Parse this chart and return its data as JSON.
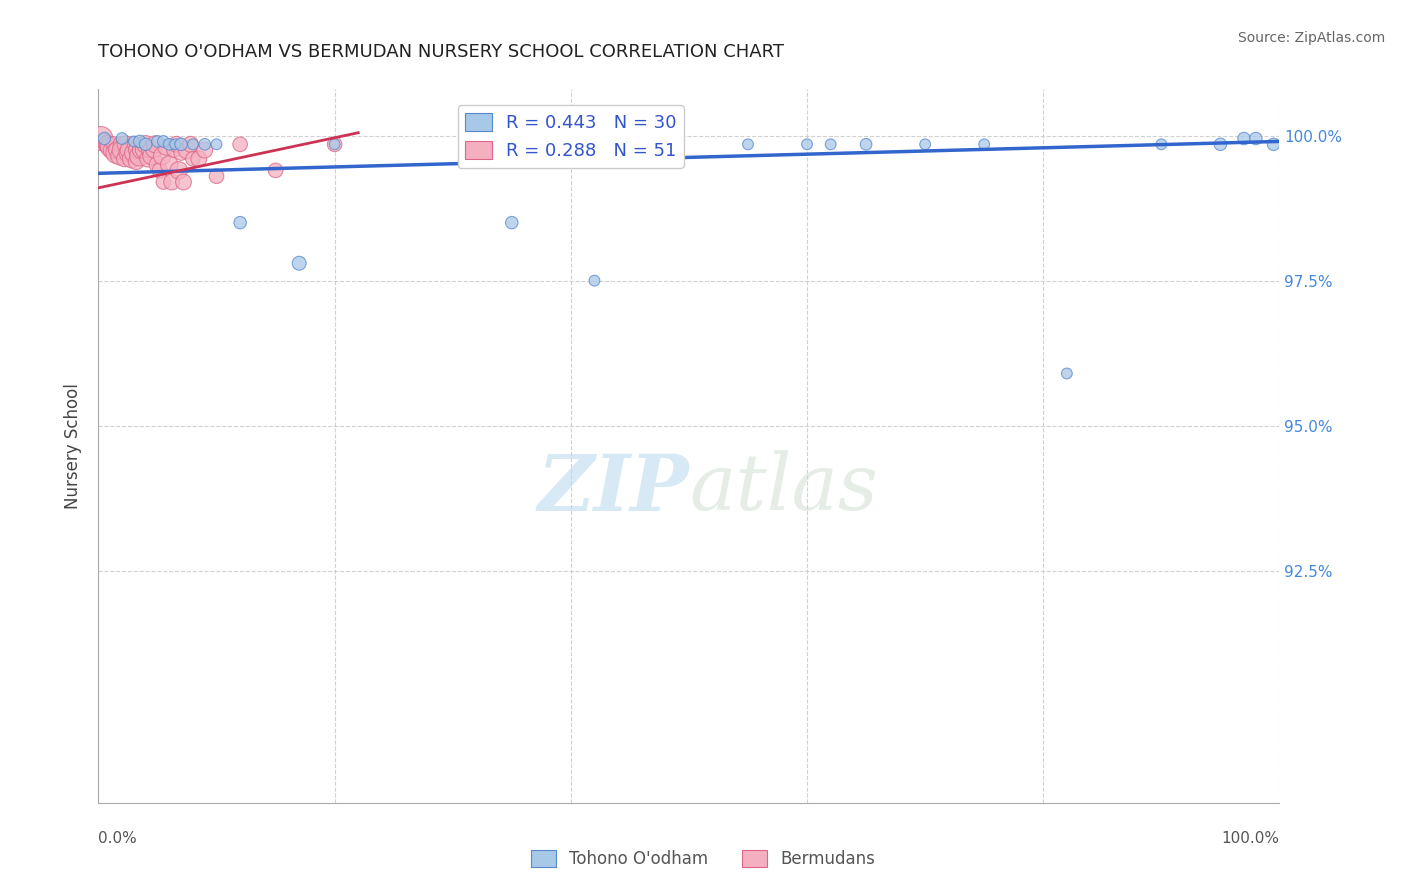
{
  "title": "TOHONO O'ODHAM VS BERMUDAN NURSERY SCHOOL CORRELATION CHART",
  "source_text": "Source: ZipAtlas.com",
  "xlabel_bottom_left": "0.0%",
  "xlabel_bottom_right": "100.0%",
  "ylabel": "Nursery School",
  "ytick_labels": [
    "100.0%",
    "97.5%",
    "95.0%",
    "92.5%"
  ],
  "ytick_values": [
    1.0,
    0.975,
    0.95,
    0.925
  ],
  "xlim": [
    0.0,
    1.0
  ],
  "ylim": [
    0.885,
    1.008
  ],
  "blue_R": 0.443,
  "blue_N": 30,
  "pink_R": 0.288,
  "pink_N": 51,
  "blue_label": "Tohono O'odham",
  "pink_label": "Bermudans",
  "blue_color": "#a8c8e8",
  "pink_color": "#f4b0c0",
  "blue_edge_color": "#5588cc",
  "pink_edge_color": "#dd6688",
  "blue_line_color": "#3366cc",
  "pink_line_color": "#cc3355",
  "watermark_zip": "ZIP",
  "watermark_atlas": "atlas",
  "blue_scatter_x": [
    0.005,
    0.02,
    0.03,
    0.035,
    0.04,
    0.05,
    0.055,
    0.06,
    0.065,
    0.07,
    0.08,
    0.09,
    0.1,
    0.12,
    0.17,
    0.2,
    0.35,
    0.42,
    0.55,
    0.6,
    0.62,
    0.65,
    0.7,
    0.75,
    0.82,
    0.9,
    0.95,
    0.97,
    0.98,
    0.995
  ],
  "blue_scatter_y": [
    0.9995,
    0.9995,
    0.999,
    0.999,
    0.9985,
    0.999,
    0.999,
    0.9985,
    0.9985,
    0.9985,
    0.9985,
    0.9985,
    0.9985,
    0.985,
    0.978,
    0.9985,
    0.985,
    0.975,
    0.9985,
    0.9985,
    0.9985,
    0.9985,
    0.9985,
    0.9985,
    0.959,
    0.9985,
    0.9985,
    0.9995,
    0.9995,
    0.9985
  ],
  "blue_scatter_size": [
    80,
    70,
    60,
    80,
    80,
    70,
    70,
    70,
    60,
    80,
    60,
    70,
    60,
    80,
    100,
    60,
    80,
    60,
    60,
    60,
    60,
    70,
    60,
    60,
    60,
    60,
    80,
    80,
    80,
    80
  ],
  "pink_scatter_x": [
    0.002,
    0.005,
    0.007,
    0.008,
    0.01,
    0.012,
    0.013,
    0.015,
    0.016,
    0.018,
    0.019,
    0.02,
    0.022,
    0.023,
    0.025,
    0.026,
    0.028,
    0.03,
    0.031,
    0.032,
    0.033,
    0.035,
    0.036,
    0.038,
    0.04,
    0.042,
    0.043,
    0.045,
    0.047,
    0.048,
    0.05,
    0.052,
    0.054,
    0.055,
    0.057,
    0.06,
    0.062,
    0.064,
    0.066,
    0.068,
    0.07,
    0.072,
    0.075,
    0.078,
    0.08,
    0.085,
    0.09,
    0.1,
    0.12,
    0.15,
    0.2
  ],
  "pink_scatter_y": [
    0.9995,
    0.999,
    0.9985,
    0.9985,
    0.998,
    0.9975,
    0.9985,
    0.997,
    0.9975,
    0.9965,
    0.9985,
    0.9975,
    0.996,
    0.9985,
    0.997,
    0.9975,
    0.996,
    0.997,
    0.9985,
    0.9955,
    0.9975,
    0.9965,
    0.9975,
    0.9975,
    0.9985,
    0.996,
    0.9975,
    0.9965,
    0.9975,
    0.9985,
    0.995,
    0.994,
    0.9965,
    0.992,
    0.998,
    0.995,
    0.992,
    0.9975,
    0.9985,
    0.994,
    0.997,
    0.992,
    0.9975,
    0.9985,
    0.996,
    0.996,
    0.9975,
    0.993,
    0.9985,
    0.994,
    0.9985
  ],
  "pink_scatter_size": [
    300,
    120,
    150,
    160,
    200,
    180,
    120,
    220,
    160,
    170,
    120,
    200,
    130,
    150,
    160,
    170,
    170,
    180,
    120,
    130,
    160,
    210,
    150,
    130,
    160,
    140,
    120,
    160,
    130,
    150,
    140,
    120,
    160,
    110,
    130,
    160,
    130,
    110,
    130,
    160,
    110,
    130,
    160,
    130,
    110,
    130,
    130,
    110,
    110,
    110,
    110
  ],
  "blue_trendline_x": [
    0.0,
    1.0
  ],
  "blue_trendline_y": [
    0.9935,
    0.999
  ],
  "pink_trendline_x": [
    0.0,
    0.22
  ],
  "pink_trendline_y": [
    0.991,
    1.0005
  ]
}
